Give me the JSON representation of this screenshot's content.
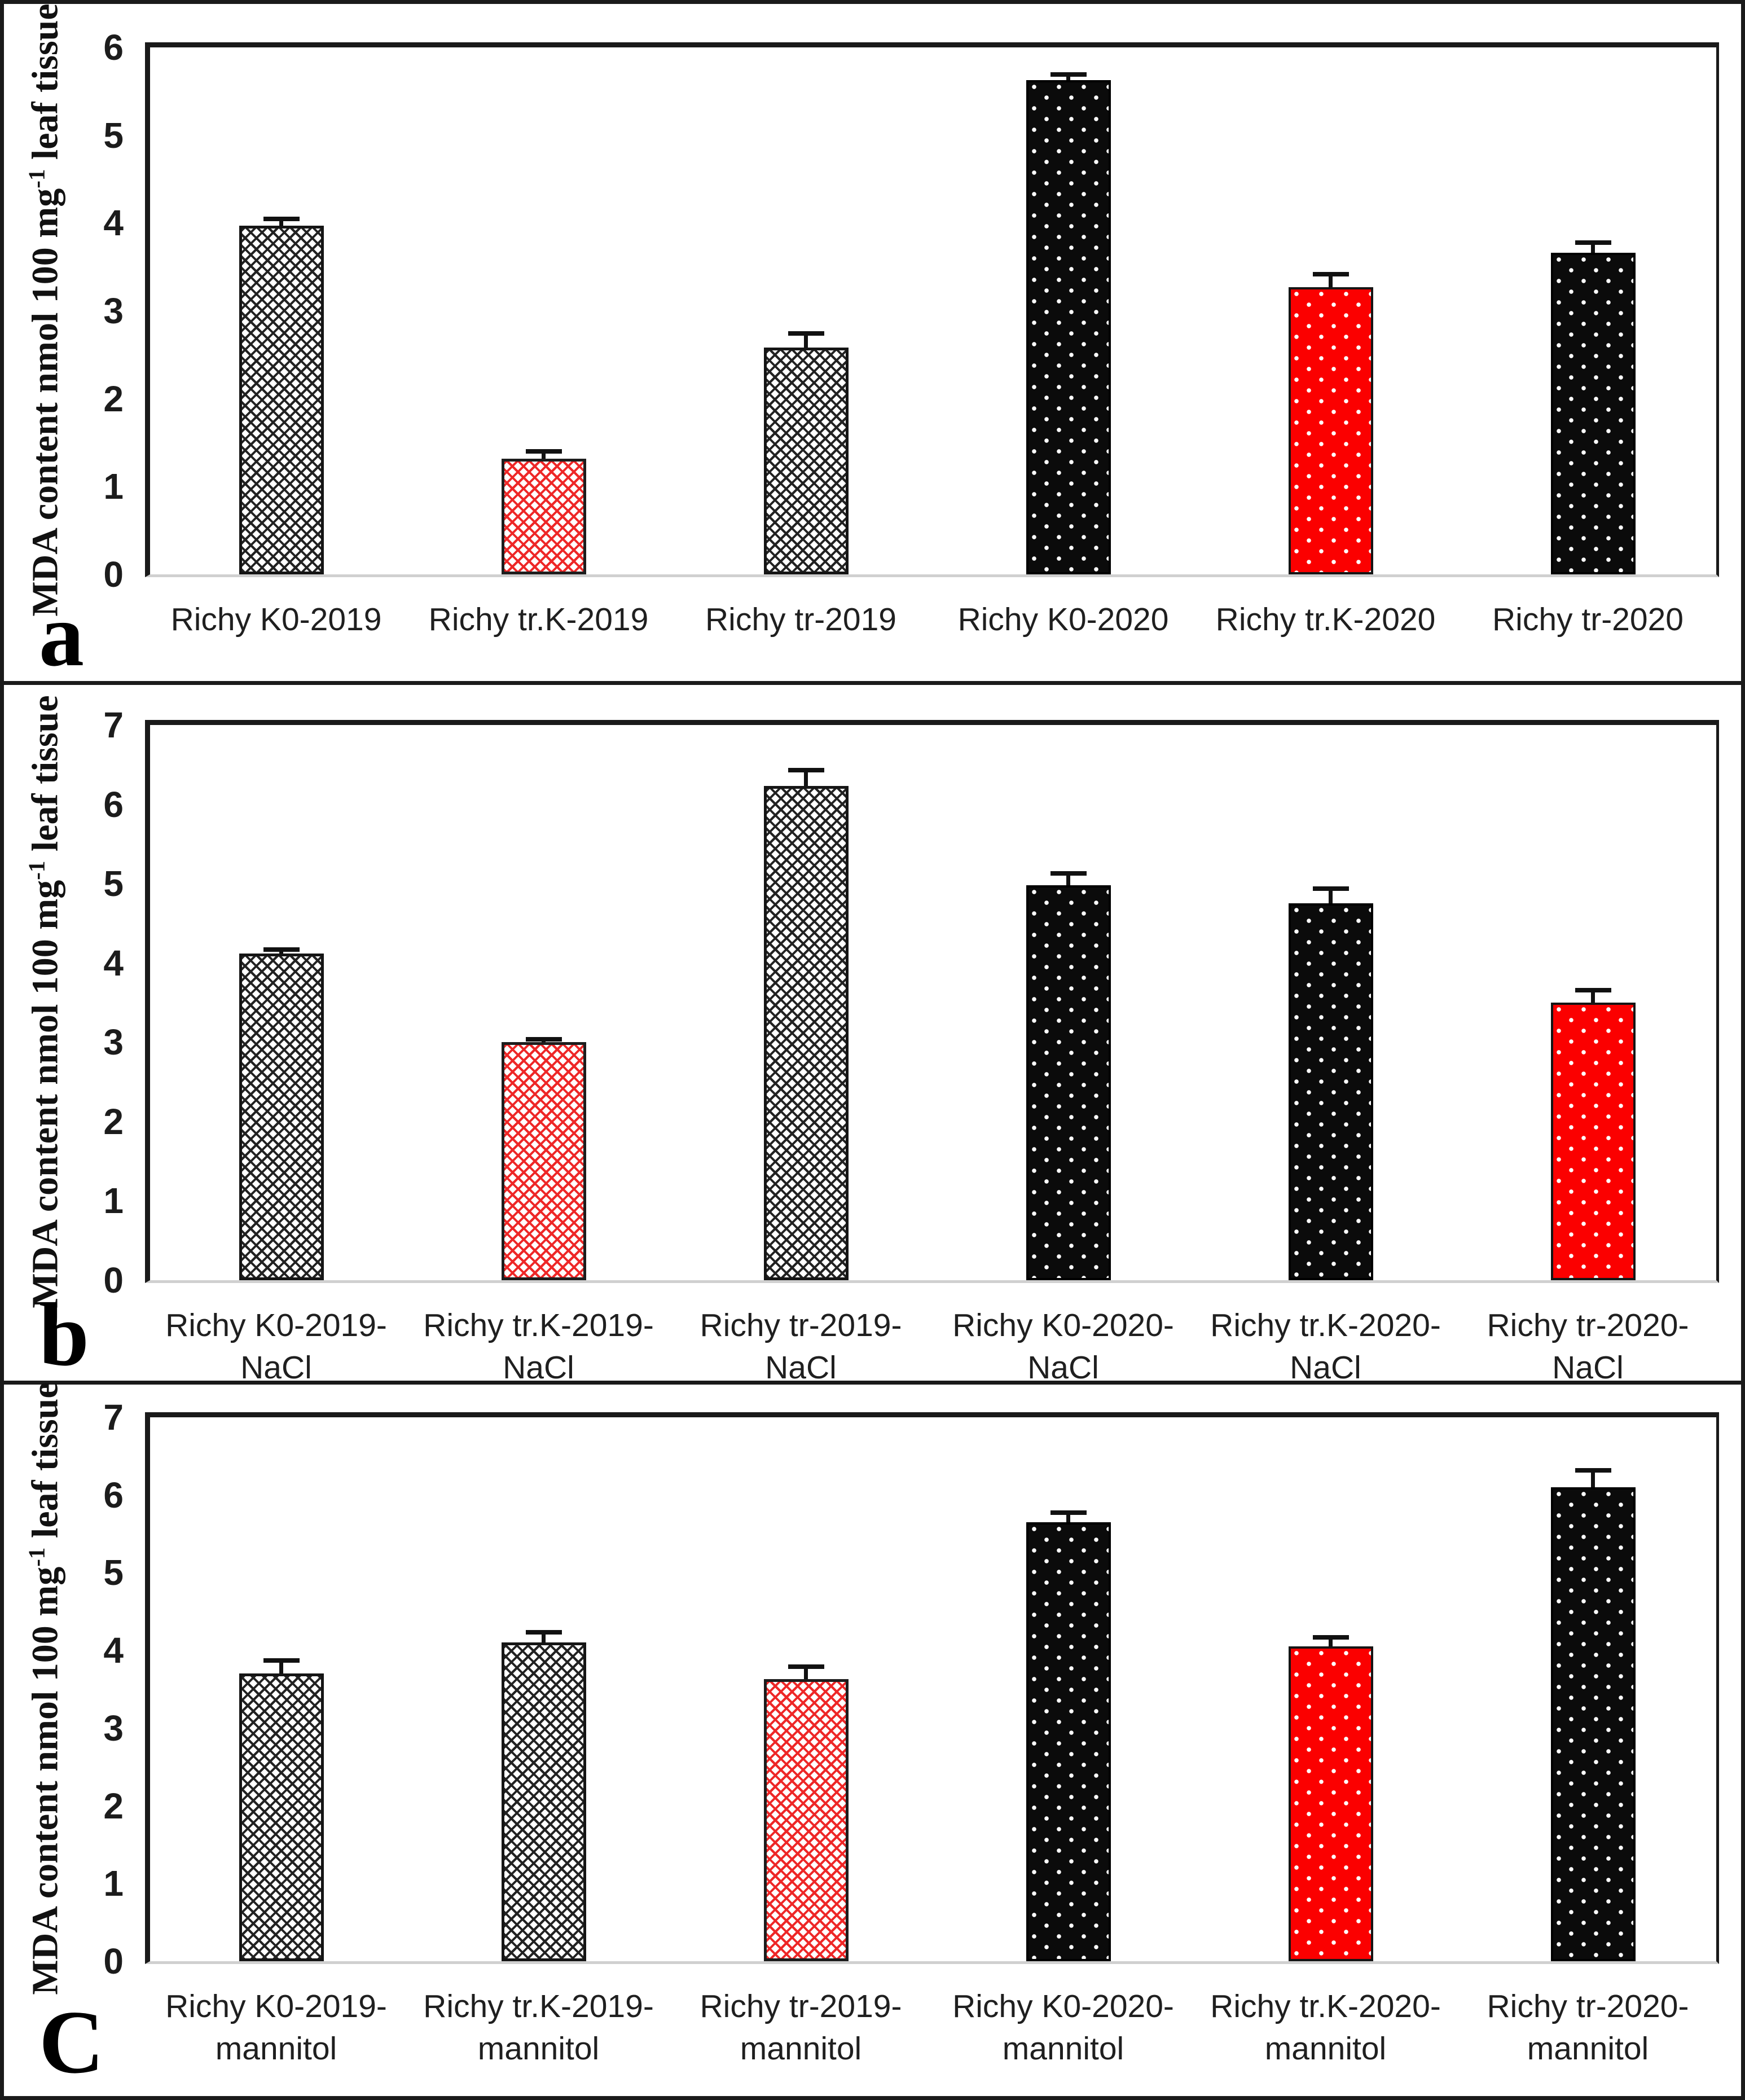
{
  "colors": {
    "accent_red": "#fb0000",
    "bar_black": "#0b0b0b",
    "hatch_line_dark": "#222222",
    "hatch_line_red": "#ee2727",
    "axis": "#1a1a1a",
    "baseline": "#d0d0d0"
  },
  "chart_data": [
    {
      "type": "bar",
      "letter": "a",
      "ylabel": "MDA content nmol 100 mg-1 leaf tissue",
      "ylabel_parts": {
        "prefix": "MDA content nmol 100 mg",
        "sup": "-1",
        "suffix": " leaf tissue"
      },
      "ylim": [
        0,
        6
      ],
      "yticks": [
        "0",
        "1",
        "2",
        "3",
        "4",
        "5",
        "6"
      ],
      "grid": false,
      "legend": "none",
      "categories": [
        "Richy K0-2019",
        "Richy tr.K-2019",
        "Richy tr-2019",
        "Richy K0-2020",
        "Richy tr.K-2020",
        "Richy tr-2020"
      ],
      "label_lines": [
        [
          "Richy K0-2019"
        ],
        [
          "Richy tr.K-2019"
        ],
        [
          "Richy tr-2019"
        ],
        [
          "Richy K0-2020"
        ],
        [
          "Richy tr.K-2020"
        ],
        [
          "Richy tr-2020"
        ]
      ],
      "values": [
        3.97,
        1.32,
        2.58,
        5.63,
        3.27,
        3.66
      ],
      "errors": [
        0.08,
        0.08,
        0.16,
        0.06,
        0.15,
        0.12
      ],
      "styles": [
        "hatch-dark",
        "hatch-red",
        "hatch-dark",
        "dot-black",
        "dot-red",
        "dot-black"
      ]
    },
    {
      "type": "bar",
      "letter": "b",
      "ylabel": "MDA content nmol 100 mg-1 leaf tissue",
      "ylabel_parts": {
        "prefix": "MDA content nmol 100 mg",
        "sup": "-1",
        "suffix": " leaf tissue"
      },
      "ylim": [
        0,
        7
      ],
      "yticks": [
        "0",
        "1",
        "2",
        "3",
        "4",
        "5",
        "6",
        "7"
      ],
      "grid": false,
      "legend": "none",
      "categories": [
        "Richy K0-2019-NaCl",
        "Richy tr.K-2019-NaCl",
        "Richy tr-2019-NaCl",
        "Richy K0-2020-NaCl",
        "Richy tr.K-2020-NaCl",
        "Richy tr-2020-NaCl"
      ],
      "label_lines": [
        [
          "Richy K0-2019-NaCl"
        ],
        [
          "Richy tr.K-2019-",
          "NaCl"
        ],
        [
          "Richy tr-2019-NaCl"
        ],
        [
          "Richy K0-2020-NaCl"
        ],
        [
          "Richy tr.K-2020-",
          "NaCl"
        ],
        [
          "Richy tr-2020-NaCl"
        ]
      ],
      "values": [
        4.12,
        3.0,
        6.23,
        4.98,
        4.75,
        3.5
      ],
      "errors": [
        0.05,
        0.04,
        0.2,
        0.15,
        0.19,
        0.16
      ],
      "styles": [
        "hatch-dark",
        "hatch-red",
        "hatch-dark",
        "dot-black",
        "dot-black",
        "dot-red"
      ]
    },
    {
      "type": "bar",
      "letter": "C",
      "ylabel": "MDA content nmol 100 mg-1 leaf tissue",
      "ylabel_parts": {
        "prefix": "MDA content nmol 100 mg",
        "sup": "-1",
        "suffix": " leaf tissue"
      },
      "ylim": [
        0,
        7
      ],
      "yticks": [
        "0",
        "1",
        "2",
        "3",
        "4",
        "5",
        "6",
        "7"
      ],
      "grid": false,
      "legend": "none",
      "categories": [
        "Richy K0-2019-mannitol",
        "Richy tr.K-2019-mannitol",
        "Richy tr-2019-mannitol",
        "Richy K0-2020-mannitol",
        "Richy tr.K-2020-mannitol",
        "Richy tr-2020-mannitol"
      ],
      "label_lines": [
        [
          "Richy K0-2019-",
          "mannitol"
        ],
        [
          "Richy tr.K-2019-",
          "mannitol"
        ],
        [
          "Richy tr-2019-",
          "mannitol"
        ],
        [
          "Richy K0-2020-",
          "mannitol"
        ],
        [
          "Richy tr.K-2020-",
          "mannitol"
        ],
        [
          "Richy tr-2020-",
          "mannitol"
        ]
      ],
      "values": [
        3.7,
        4.1,
        3.63,
        5.65,
        4.05,
        6.1
      ],
      "errors": [
        0.17,
        0.13,
        0.16,
        0.12,
        0.12,
        0.22
      ],
      "styles": [
        "hatch-dark",
        "hatch-dark",
        "hatch-red",
        "dot-black",
        "dot-red",
        "dot-black"
      ]
    }
  ]
}
